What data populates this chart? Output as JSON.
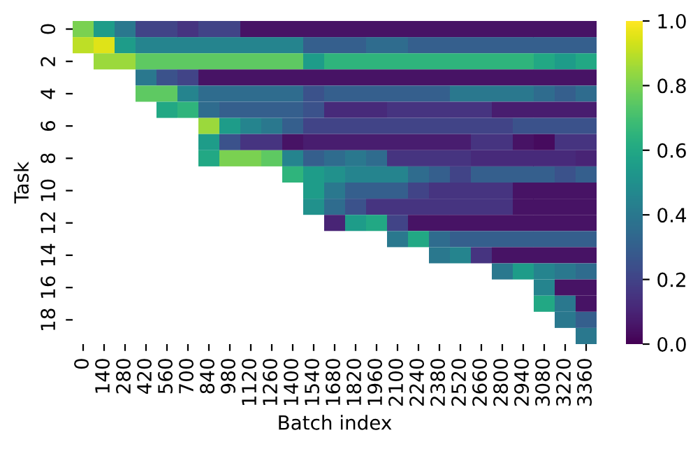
{
  "chart_data": {
    "type": "heatmap",
    "xlabel": "Batch index",
    "ylabel": "Task",
    "categories": [
      "0",
      "140",
      "280",
      "420",
      "560",
      "700",
      "840",
      "980",
      "1120",
      "1260",
      "1400",
      "1540",
      "1680",
      "1820",
      "1960",
      "2100",
      "2240",
      "2380",
      "2520",
      "2660",
      "2800",
      "2940",
      "3080",
      "3220",
      "3360"
    ],
    "y_categories": [
      "0",
      null,
      "2",
      null,
      "4",
      null,
      "6",
      null,
      "8",
      null,
      "10",
      null,
      "12",
      null,
      "14",
      null,
      "16",
      null,
      "18",
      null
    ],
    "cells": [
      [
        0.8,
        0.55,
        0.4,
        0.2,
        0.2,
        0.15,
        0.2,
        0.2,
        0.05,
        0.05,
        0.05,
        0.05,
        0.05,
        0.05,
        0.05,
        0.05,
        0.05,
        0.05,
        0.05,
        0.05,
        0.05,
        0.05,
        0.05,
        0.05,
        0.05
      ],
      [
        0.9,
        0.95,
        0.55,
        0.45,
        0.45,
        0.45,
        0.45,
        0.45,
        0.45,
        0.45,
        0.45,
        0.3,
        0.3,
        0.3,
        0.35,
        0.35,
        0.3,
        0.3,
        0.3,
        0.3,
        0.3,
        0.3,
        0.3,
        0.3,
        0.3
      ],
      [
        null,
        0.85,
        0.85,
        0.75,
        0.75,
        0.75,
        0.75,
        0.75,
        0.75,
        0.75,
        0.75,
        0.55,
        0.65,
        0.65,
        0.65,
        0.65,
        0.65,
        0.65,
        0.65,
        0.65,
        0.65,
        0.65,
        0.6,
        0.55,
        0.6
      ],
      [
        null,
        null,
        null,
        0.4,
        0.25,
        0.2,
        0.05,
        0.05,
        0.05,
        0.05,
        0.05,
        0.05,
        0.05,
        0.05,
        0.05,
        0.05,
        0.05,
        0.05,
        0.05,
        0.05,
        0.05,
        0.05,
        0.05,
        0.05,
        0.05
      ],
      [
        null,
        null,
        null,
        0.75,
        0.75,
        0.45,
        0.35,
        0.35,
        0.35,
        0.35,
        0.35,
        0.25,
        0.3,
        0.3,
        0.3,
        0.3,
        0.3,
        0.3,
        0.4,
        0.4,
        0.4,
        0.4,
        0.35,
        0.3,
        0.35
      ],
      [
        null,
        null,
        null,
        null,
        0.6,
        0.65,
        0.35,
        0.3,
        0.3,
        0.3,
        0.3,
        0.25,
        0.12,
        0.12,
        0.12,
        0.15,
        0.15,
        0.15,
        0.15,
        0.15,
        0.08,
        0.08,
        0.08,
        0.08,
        0.08
      ],
      [
        null,
        null,
        null,
        null,
        null,
        null,
        0.85,
        0.55,
        0.45,
        0.4,
        0.3,
        0.2,
        0.2,
        0.2,
        0.2,
        0.2,
        0.2,
        0.2,
        0.2,
        0.2,
        0.2,
        0.25,
        0.25,
        0.25,
        0.25
      ],
      [
        null,
        null,
        null,
        null,
        null,
        null,
        0.55,
        0.25,
        0.15,
        0.15,
        0.05,
        0.08,
        0.08,
        0.08,
        0.08,
        0.08,
        0.08,
        0.08,
        0.08,
        0.15,
        0.15,
        0.05,
        0.03,
        0.15,
        0.15
      ],
      [
        null,
        null,
        null,
        null,
        null,
        null,
        0.6,
        0.8,
        0.8,
        0.75,
        0.45,
        0.3,
        0.35,
        0.4,
        0.35,
        0.15,
        0.15,
        0.15,
        0.15,
        0.12,
        0.12,
        0.12,
        0.12,
        0.12,
        0.1
      ],
      [
        null,
        null,
        null,
        null,
        null,
        null,
        null,
        null,
        null,
        null,
        0.65,
        0.55,
        0.5,
        0.45,
        0.45,
        0.45,
        0.35,
        0.3,
        0.2,
        0.3,
        0.3,
        0.3,
        0.3,
        0.25,
        0.3
      ],
      [
        null,
        null,
        null,
        null,
        null,
        null,
        null,
        null,
        null,
        null,
        null,
        0.55,
        0.4,
        0.3,
        0.3,
        0.3,
        0.2,
        0.15,
        0.15,
        0.15,
        0.15,
        0.05,
        0.05,
        0.05,
        0.05
      ],
      [
        null,
        null,
        null,
        null,
        null,
        null,
        null,
        null,
        null,
        null,
        null,
        0.5,
        0.35,
        0.25,
        0.15,
        0.15,
        0.15,
        0.15,
        0.15,
        0.15,
        0.15,
        0.05,
        0.05,
        0.05,
        0.05
      ],
      [
        null,
        null,
        null,
        null,
        null,
        null,
        null,
        null,
        null,
        null,
        null,
        null,
        0.1,
        0.55,
        0.6,
        0.2,
        0.05,
        0.05,
        0.05,
        0.05,
        0.05,
        0.05,
        0.05,
        0.05,
        0.05
      ],
      [
        null,
        null,
        null,
        null,
        null,
        null,
        null,
        null,
        null,
        null,
        null,
        null,
        null,
        null,
        null,
        0.4,
        0.6,
        0.35,
        0.3,
        0.3,
        0.3,
        0.3,
        0.3,
        0.3,
        0.3
      ],
      [
        null,
        null,
        null,
        null,
        null,
        null,
        null,
        null,
        null,
        null,
        null,
        null,
        null,
        null,
        null,
        null,
        null,
        0.4,
        0.45,
        0.15,
        0.05,
        0.05,
        0.05,
        0.05,
        0.05
      ],
      [
        null,
        null,
        null,
        null,
        null,
        null,
        null,
        null,
        null,
        null,
        null,
        null,
        null,
        null,
        null,
        null,
        null,
        null,
        null,
        null,
        0.4,
        0.55,
        0.45,
        0.4,
        0.35
      ],
      [
        null,
        null,
        null,
        null,
        null,
        null,
        null,
        null,
        null,
        null,
        null,
        null,
        null,
        null,
        null,
        null,
        null,
        null,
        null,
        null,
        null,
        null,
        0.45,
        0.05,
        0.05
      ],
      [
        null,
        null,
        null,
        null,
        null,
        null,
        null,
        null,
        null,
        null,
        null,
        null,
        null,
        null,
        null,
        null,
        null,
        null,
        null,
        null,
        null,
        null,
        0.6,
        0.4,
        0.05
      ],
      [
        null,
        null,
        null,
        null,
        null,
        null,
        null,
        null,
        null,
        null,
        null,
        null,
        null,
        null,
        null,
        null,
        null,
        null,
        null,
        null,
        null,
        null,
        null,
        0.4,
        0.3
      ],
      [
        null,
        null,
        null,
        null,
        null,
        null,
        null,
        null,
        null,
        null,
        null,
        null,
        null,
        null,
        null,
        null,
        null,
        null,
        null,
        null,
        null,
        null,
        null,
        null,
        0.4
      ]
    ],
    "clim": [
      0,
      1
    ],
    "cticks": [
      {
        "value": 0,
        "label": "0.0"
      },
      0.2,
      0.4,
      0.6,
      0.8,
      {
        "value": 1,
        "label": "1.0"
      }
    ]
  }
}
